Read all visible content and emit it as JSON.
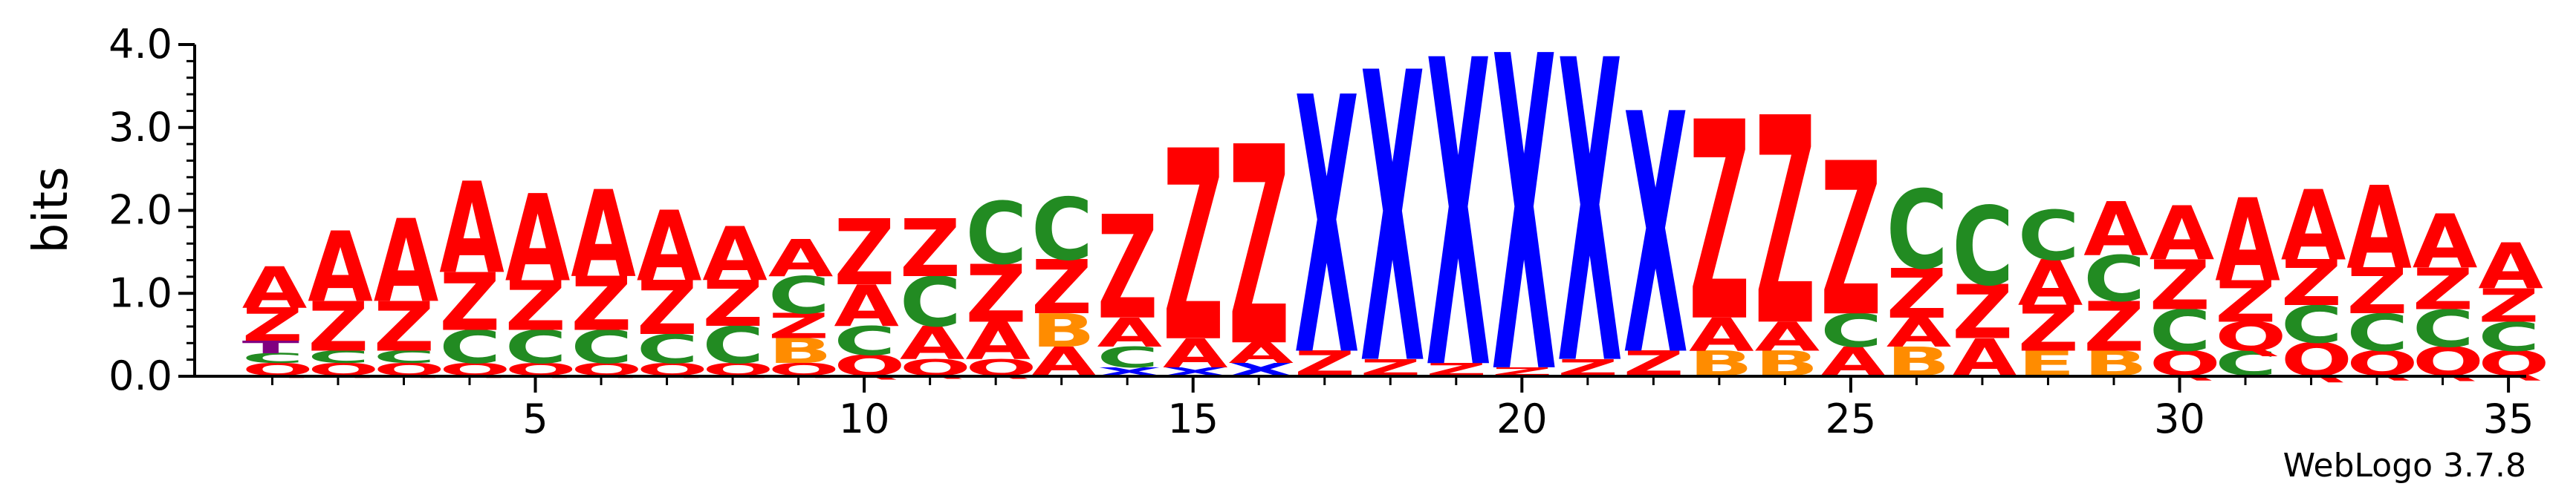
{
  "chart_data": {
    "type": "sequence-logo",
    "ylabel": "bits",
    "ylim": [
      0,
      4.0
    ],
    "y_ticks": [
      "0.0",
      "1.0",
      "2.0",
      "3.0",
      "4.0"
    ],
    "x_ticks": [
      "5",
      "10",
      "15",
      "20",
      "25",
      "30",
      "35"
    ],
    "x_tick_positions": [
      5,
      10,
      15,
      20,
      25,
      30,
      35
    ],
    "positions": 35,
    "credit": "WebLogo 3.7.8",
    "colors": {
      "A": "#ff0000",
      "Z": "#ff0000",
      "X": "#0000ff",
      "C": "#228b22",
      "B": "#ff8c00",
      "Q": "#ff0000",
      "T": "#800080",
      "E": "#ff8c00"
    },
    "stacks": [
      [
        [
          "Q",
          0.15
        ],
        [
          "C",
          0.12
        ],
        [
          "T",
          0.15
        ],
        [
          "Z",
          0.4
        ],
        [
          "A",
          0.5
        ]
      ],
      [
        [
          "Q",
          0.15
        ],
        [
          "C",
          0.15
        ],
        [
          "Z",
          0.6
        ],
        [
          "A",
          0.85
        ]
      ],
      [
        [
          "Q",
          0.15
        ],
        [
          "C",
          0.15
        ],
        [
          "Z",
          0.6
        ],
        [
          "A",
          1.0
        ]
      ],
      [
        [
          "Q",
          0.15
        ],
        [
          "C",
          0.4
        ],
        [
          "Z",
          0.7
        ],
        [
          "A",
          1.1
        ]
      ],
      [
        [
          "Q",
          0.15
        ],
        [
          "C",
          0.4
        ],
        [
          "Z",
          0.6
        ],
        [
          "A",
          1.05
        ]
      ],
      [
        [
          "Q",
          0.15
        ],
        [
          "C",
          0.4
        ],
        [
          "Z",
          0.65
        ],
        [
          "A",
          1.05
        ]
      ],
      [
        [
          "Q",
          0.15
        ],
        [
          "C",
          0.35
        ],
        [
          "Z",
          0.65
        ],
        [
          "A",
          0.85
        ]
      ],
      [
        [
          "Q",
          0.15
        ],
        [
          "C",
          0.45
        ],
        [
          "Z",
          0.55
        ],
        [
          "A",
          0.65
        ]
      ],
      [
        [
          "Q",
          0.15
        ],
        [
          "B",
          0.3
        ],
        [
          "Z",
          0.3
        ],
        [
          "C",
          0.45
        ],
        [
          "A",
          0.45
        ]
      ],
      [
        [
          "Q",
          0.25
        ],
        [
          "C",
          0.35
        ],
        [
          "A",
          0.5
        ],
        [
          "Z",
          0.8
        ]
      ],
      [
        [
          "Q",
          0.2
        ],
        [
          "A",
          0.4
        ],
        [
          "C",
          0.6
        ],
        [
          "Z",
          0.7
        ]
      ],
      [
        [
          "Q",
          0.2
        ],
        [
          "A",
          0.45
        ],
        [
          "Z",
          0.7
        ],
        [
          "C",
          0.75
        ]
      ],
      [
        [
          "A",
          0.35
        ],
        [
          "B",
          0.4
        ],
        [
          "Z",
          0.65
        ],
        [
          "C",
          0.75
        ]
      ],
      [
        [
          "X",
          0.1
        ],
        [
          "C",
          0.25
        ],
        [
          "A",
          0.35
        ],
        [
          "Z",
          1.25
        ]
      ],
      [
        [
          "X",
          0.1
        ],
        [
          "A",
          0.35
        ],
        [
          "Z",
          2.3
        ]
      ],
      [
        [
          "X",
          0.15
        ],
        [
          "A",
          0.25
        ],
        [
          "Z",
          2.4
        ]
      ],
      [
        [
          "Z",
          0.3
        ],
        [
          "X",
          3.1
        ]
      ],
      [
        [
          "Z",
          0.2
        ],
        [
          "X",
          3.5
        ]
      ],
      [
        [
          "Z",
          0.15
        ],
        [
          "X",
          3.7
        ]
      ],
      [
        [
          "Z",
          0.1
        ],
        [
          "X",
          3.8
        ]
      ],
      [
        [
          "Z",
          0.2
        ],
        [
          "X",
          3.65
        ]
      ],
      [
        [
          "Z",
          0.3
        ],
        [
          "X",
          2.9
        ]
      ],
      [
        [
          "B",
          0.3
        ],
        [
          "A",
          0.4
        ],
        [
          "Z",
          2.4
        ]
      ],
      [
        [
          "B",
          0.3
        ],
        [
          "A",
          0.35
        ],
        [
          "Z",
          2.5
        ]
      ],
      [
        [
          "A",
          0.35
        ],
        [
          "C",
          0.4
        ],
        [
          "Z",
          1.85
        ]
      ],
      [
        [
          "B",
          0.35
        ],
        [
          "A",
          0.35
        ],
        [
          "Z",
          0.6
        ],
        [
          "C",
          0.95
        ]
      ],
      [
        [
          "A",
          0.45
        ],
        [
          "Z",
          0.65
        ],
        [
          "C",
          0.95
        ]
      ],
      [
        [
          "E",
          0.3
        ],
        [
          "Z",
          0.55
        ],
        [
          "A",
          0.55
        ],
        [
          "C",
          0.6
        ]
      ],
      [
        [
          "B",
          0.3
        ],
        [
          "Z",
          0.6
        ],
        [
          "C",
          0.55
        ],
        [
          "A",
          0.65
        ]
      ],
      [
        [
          "Q",
          0.3
        ],
        [
          "C",
          0.5
        ],
        [
          "Z",
          0.6
        ],
        [
          "A",
          0.65
        ]
      ],
      [
        [
          "C",
          0.3
        ],
        [
          "Q",
          0.35
        ],
        [
          "Z",
          0.5
        ],
        [
          "A",
          1.0
        ]
      ],
      [
        [
          "Q",
          0.4
        ],
        [
          "C",
          0.45
        ],
        [
          "Z",
          0.55
        ],
        [
          "A",
          0.85
        ]
      ],
      [
        [
          "Q",
          0.3
        ],
        [
          "C",
          0.45
        ],
        [
          "Z",
          0.55
        ],
        [
          "A",
          1.0
        ]
      ],
      [
        [
          "Q",
          0.35
        ],
        [
          "C",
          0.45
        ],
        [
          "Z",
          0.5
        ],
        [
          "A",
          0.65
        ]
      ],
      [
        [
          "Q",
          0.3
        ],
        [
          "C",
          0.35
        ],
        [
          "Z",
          0.4
        ],
        [
          "A",
          0.55
        ]
      ]
    ]
  }
}
